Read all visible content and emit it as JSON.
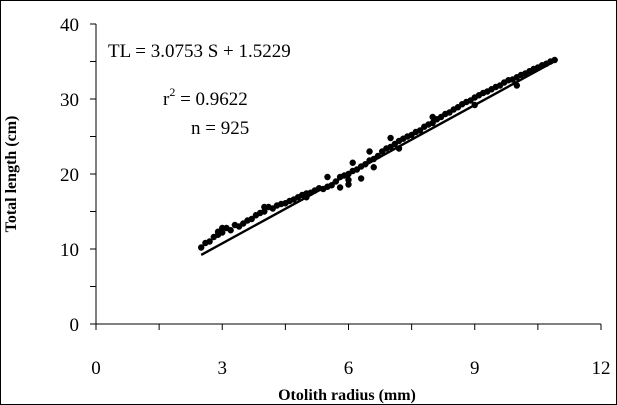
{
  "chart_data": {
    "type": "scatter",
    "title": "",
    "xlabel": "Otolith radius (mm)",
    "ylabel": "Total length (cm)",
    "xlim": [
      0,
      12
    ],
    "ylim": [
      0,
      40
    ],
    "x_ticks": [
      0,
      3,
      6,
      9,
      12
    ],
    "y_ticks": [
      0,
      10,
      20,
      30,
      40
    ],
    "x_minor_step": 1.5,
    "y_minor_step": 5,
    "grid": false,
    "legend": "none",
    "marker_color": "#000000",
    "annotations": {
      "equation": "TL = 3.0753 S + 1.5229",
      "r2_prefix": "r",
      "r2_exponent": "2",
      "r2_value": " = 0.9622",
      "n": "n = 925"
    },
    "fit_line": {
      "slope": 3.0753,
      "intercept": 1.5229,
      "x_range": [
        2.5,
        10.9
      ]
    },
    "points": [
      [
        2.5,
        10.2
      ],
      [
        2.6,
        10.8
      ],
      [
        2.7,
        11.0
      ],
      [
        2.8,
        11.6
      ],
      [
        2.9,
        12.3
      ],
      [
        2.9,
        11.9
      ],
      [
        3.0,
        12.2
      ],
      [
        3.1,
        12.8
      ],
      [
        3.2,
        12.5
      ],
      [
        3.3,
        13.2
      ],
      [
        3.4,
        13.0
      ],
      [
        3.5,
        13.4
      ],
      [
        3.6,
        13.8
      ],
      [
        3.7,
        14.0
      ],
      [
        3.8,
        14.5
      ],
      [
        3.9,
        14.8
      ],
      [
        4.0,
        15.0
      ],
      [
        4.1,
        15.6
      ],
      [
        4.2,
        15.4
      ],
      [
        4.3,
        15.8
      ],
      [
        4.4,
        16.0
      ],
      [
        4.5,
        16.1
      ],
      [
        4.6,
        16.4
      ],
      [
        4.7,
        16.6
      ],
      [
        4.8,
        16.9
      ],
      [
        4.9,
        17.2
      ],
      [
        5.0,
        17.4
      ],
      [
        5.1,
        17.5
      ],
      [
        5.2,
        17.8
      ],
      [
        5.3,
        18.1
      ],
      [
        5.4,
        18.0
      ],
      [
        5.5,
        18.3
      ],
      [
        5.5,
        19.6
      ],
      [
        5.6,
        18.5
      ],
      [
        5.7,
        19.0
      ],
      [
        5.8,
        19.6
      ],
      [
        5.8,
        18.2
      ],
      [
        5.9,
        19.8
      ],
      [
        6.0,
        20.0
      ],
      [
        6.0,
        18.6
      ],
      [
        6.1,
        20.4
      ],
      [
        6.1,
        21.5
      ],
      [
        6.2,
        20.6
      ],
      [
        6.3,
        21.0
      ],
      [
        6.4,
        21.3
      ],
      [
        6.5,
        21.8
      ],
      [
        6.5,
        23.0
      ],
      [
        6.6,
        22.0
      ],
      [
        6.7,
        22.4
      ],
      [
        6.8,
        23.0
      ],
      [
        6.9,
        23.4
      ],
      [
        7.0,
        23.6
      ],
      [
        7.1,
        24.0
      ],
      [
        7.2,
        24.4
      ],
      [
        7.3,
        24.7
      ],
      [
        7.4,
        25.0
      ],
      [
        7.5,
        25.2
      ],
      [
        7.6,
        25.6
      ],
      [
        7.7,
        25.8
      ],
      [
        7.8,
        26.3
      ],
      [
        7.9,
        26.6
      ],
      [
        8.0,
        26.8
      ],
      [
        8.1,
        27.3
      ],
      [
        8.2,
        27.6
      ],
      [
        8.3,
        28.0
      ],
      [
        8.4,
        28.2
      ],
      [
        8.5,
        28.6
      ],
      [
        8.6,
        28.9
      ],
      [
        8.7,
        29.3
      ],
      [
        8.8,
        29.6
      ],
      [
        8.9,
        29.8
      ],
      [
        9.0,
        30.2
      ],
      [
        9.1,
        30.5
      ],
      [
        9.2,
        30.8
      ],
      [
        9.3,
        31.0
      ],
      [
        9.4,
        31.3
      ],
      [
        9.5,
        31.6
      ],
      [
        9.6,
        31.8
      ],
      [
        9.7,
        32.2
      ],
      [
        9.8,
        32.5
      ],
      [
        9.9,
        32.6
      ],
      [
        10.0,
        32.9
      ],
      [
        10.1,
        33.2
      ],
      [
        10.2,
        33.4
      ],
      [
        10.3,
        33.7
      ],
      [
        10.4,
        34.0
      ],
      [
        10.5,
        34.2
      ],
      [
        10.6,
        34.5
      ],
      [
        10.7,
        34.7
      ],
      [
        10.8,
        35.0
      ],
      [
        10.9,
        35.2
      ],
      [
        10.0,
        31.8
      ],
      [
        9.0,
        29.2
      ],
      [
        8.0,
        27.6
      ],
      [
        7.0,
        24.8
      ],
      [
        6.0,
        19.2
      ],
      [
        5.0,
        16.9
      ],
      [
        4.0,
        15.6
      ],
      [
        3.0,
        12.8
      ],
      [
        6.3,
        19.4
      ],
      [
        6.6,
        20.9
      ],
      [
        7.2,
        23.4
      ]
    ]
  }
}
